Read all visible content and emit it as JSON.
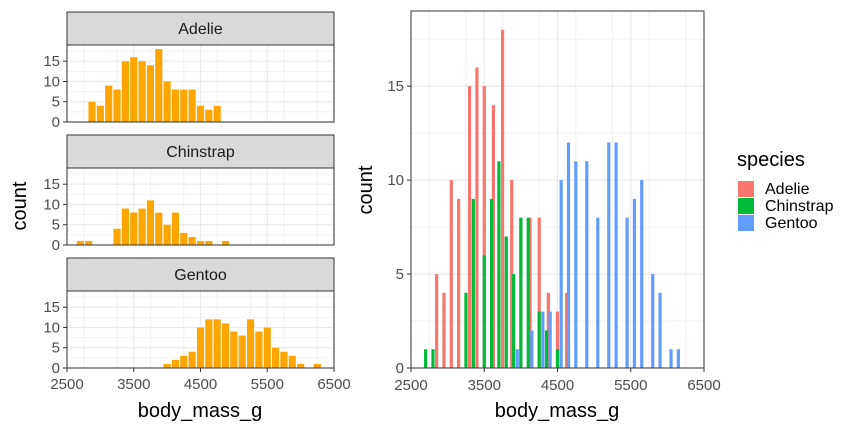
{
  "chart_data": [
    {
      "type": "bar",
      "subtype": "histogram-facets",
      "fill_color": "#FFA500",
      "xlabel": "body_mass_g",
      "ylabel": "count",
      "xlim": [
        2500,
        6500
      ],
      "ylim": [
        0,
        19
      ],
      "x_ticks": [
        2500,
        3500,
        4500,
        5500,
        6500
      ],
      "y_ticks": [
        0,
        5,
        10,
        15
      ],
      "bin_width": 125,
      "facets": [
        {
          "name": "Adelie",
          "bins": [
            {
              "x": 2875,
              "count": 5
            },
            {
              "x": 3000,
              "count": 4
            },
            {
              "x": 3125,
              "count": 9
            },
            {
              "x": 3250,
              "count": 8
            },
            {
              "x": 3375,
              "count": 15
            },
            {
              "x": 3500,
              "count": 16
            },
            {
              "x": 3625,
              "count": 15
            },
            {
              "x": 3750,
              "count": 14
            },
            {
              "x": 3875,
              "count": 18
            },
            {
              "x": 4000,
              "count": 10
            },
            {
              "x": 4125,
              "count": 8
            },
            {
              "x": 4250,
              "count": 8
            },
            {
              "x": 4375,
              "count": 8
            },
            {
              "x": 4500,
              "count": 4
            },
            {
              "x": 4625,
              "count": 3
            },
            {
              "x": 4750,
              "count": 4
            }
          ]
        },
        {
          "name": "Chinstrap",
          "bins": [
            {
              "x": 2700,
              "count": 1
            },
            {
              "x": 2825,
              "count": 1
            },
            {
              "x": 3250,
              "count": 4
            },
            {
              "x": 3375,
              "count": 9
            },
            {
              "x": 3500,
              "count": 8
            },
            {
              "x": 3625,
              "count": 9
            },
            {
              "x": 3750,
              "count": 11
            },
            {
              "x": 3875,
              "count": 8
            },
            {
              "x": 4000,
              "count": 5
            },
            {
              "x": 4125,
              "count": 8
            },
            {
              "x": 4250,
              "count": 3
            },
            {
              "x": 4375,
              "count": 2
            },
            {
              "x": 4500,
              "count": 1
            },
            {
              "x": 4625,
              "count": 1
            },
            {
              "x": 4875,
              "count": 1
            }
          ]
        },
        {
          "name": "Gentoo",
          "bins": [
            {
              "x": 4000,
              "count": 1
            },
            {
              "x": 4125,
              "count": 2
            },
            {
              "x": 4250,
              "count": 3
            },
            {
              "x": 4375,
              "count": 4
            },
            {
              "x": 4500,
              "count": 10
            },
            {
              "x": 4625,
              "count": 12
            },
            {
              "x": 4750,
              "count": 12
            },
            {
              "x": 4875,
              "count": 11
            },
            {
              "x": 5000,
              "count": 9
            },
            {
              "x": 5125,
              "count": 8
            },
            {
              "x": 5250,
              "count": 12
            },
            {
              "x": 5375,
              "count": 9
            },
            {
              "x": 5500,
              "count": 10
            },
            {
              "x": 5625,
              "count": 5
            },
            {
              "x": 5750,
              "count": 4
            },
            {
              "x": 5875,
              "count": 3
            },
            {
              "x": 6000,
              "count": 1
            },
            {
              "x": 6250,
              "count": 1
            }
          ]
        }
      ]
    },
    {
      "type": "bar",
      "subtype": "histogram-dodged",
      "xlabel": "body_mass_g",
      "ylabel": "count",
      "xlim": [
        2500,
        6500
      ],
      "ylim": [
        0,
        19
      ],
      "x_ticks": [
        2500,
        3500,
        4500,
        5500,
        6500
      ],
      "y_ticks": [
        0,
        5,
        10,
        15
      ],
      "legend_title": "species",
      "legend_position": "right",
      "series": [
        {
          "name": "Adelie",
          "color": "#F8766D",
          "points": [
            {
              "x": 2850,
              "y": 5
            },
            {
              "x": 2950,
              "y": 4
            },
            {
              "x": 3050,
              "y": 10
            },
            {
              "x": 3150,
              "y": 9
            },
            {
              "x": 3300,
              "y": 15
            },
            {
              "x": 3400,
              "y": 16
            },
            {
              "x": 3500,
              "y": 15
            },
            {
              "x": 3625,
              "y": 14
            },
            {
              "x": 3750,
              "y": 18
            },
            {
              "x": 3875,
              "y": 10
            },
            {
              "x": 4000,
              "y": 8
            },
            {
              "x": 4125,
              "y": 8
            },
            {
              "x": 4250,
              "y": 8
            },
            {
              "x": 4375,
              "y": 4
            },
            {
              "x": 4500,
              "y": 3
            },
            {
              "x": 4625,
              "y": 4
            }
          ]
        },
        {
          "name": "Chinstrap",
          "color": "#00BA38",
          "points": [
            {
              "x": 2700,
              "y": 1
            },
            {
              "x": 2800,
              "y": 1
            },
            {
              "x": 3250,
              "y": 4
            },
            {
              "x": 3350,
              "y": 9
            },
            {
              "x": 3500,
              "y": 6
            },
            {
              "x": 3600,
              "y": 9
            },
            {
              "x": 3700,
              "y": 11
            },
            {
              "x": 3800,
              "y": 7
            },
            {
              "x": 3900,
              "y": 5
            },
            {
              "x": 4000,
              "y": 8
            },
            {
              "x": 4100,
              "y": 8
            },
            {
              "x": 4250,
              "y": 3
            },
            {
              "x": 4350,
              "y": 2
            },
            {
              "x": 4500,
              "y": 1
            },
            {
              "x": 4650,
              "y": 1
            }
          ]
        },
        {
          "name": "Gentoo",
          "color": "#619CFF",
          "points": [
            {
              "x": 3950,
              "y": 1
            },
            {
              "x": 4150,
              "y": 2
            },
            {
              "x": 4300,
              "y": 3
            },
            {
              "x": 4400,
              "y": 3
            },
            {
              "x": 4550,
              "y": 10
            },
            {
              "x": 4650,
              "y": 12
            },
            {
              "x": 4750,
              "y": 11
            },
            {
              "x": 4900,
              "y": 11
            },
            {
              "x": 5050,
              "y": 8
            },
            {
              "x": 5200,
              "y": 12
            },
            {
              "x": 5300,
              "y": 12
            },
            {
              "x": 5450,
              "y": 8
            },
            {
              "x": 5550,
              "y": 9
            },
            {
              "x": 5650,
              "y": 10
            },
            {
              "x": 5800,
              "y": 5
            },
            {
              "x": 5900,
              "y": 4
            },
            {
              "x": 6050,
              "y": 1
            },
            {
              "x": 6150,
              "y": 1
            }
          ]
        }
      ]
    }
  ]
}
